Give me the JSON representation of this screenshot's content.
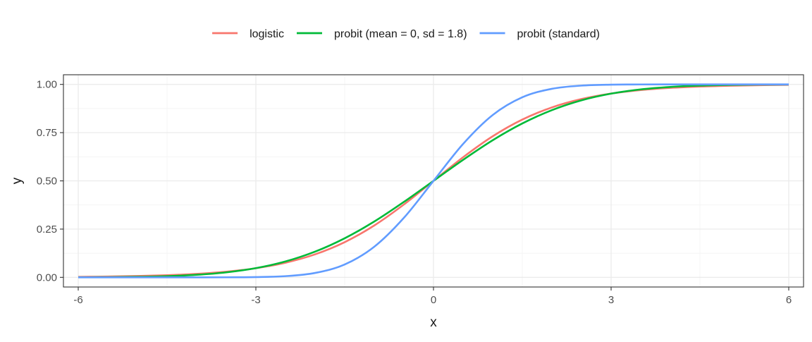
{
  "chart_data": {
    "type": "line",
    "title": "",
    "xlabel": "x",
    "ylabel": "y",
    "xlim": [
      -6.25,
      6.25
    ],
    "ylim": [
      -0.05,
      1.05
    ],
    "x_ticks": [
      -6,
      -3,
      0,
      3,
      6
    ],
    "x_tick_labels": [
      "-6",
      "-3",
      "0",
      "3",
      "6"
    ],
    "y_ticks": [
      0,
      0.25,
      0.5,
      0.75,
      1
    ],
    "y_tick_labels": [
      "0.00",
      "0.25",
      "0.50",
      "0.75",
      "1.00"
    ],
    "x_minor_ticks": [
      -4.5,
      -1.5,
      1.5,
      4.5
    ],
    "y_minor_ticks": [
      0.125,
      0.375,
      0.625,
      0.875
    ],
    "grid": true,
    "legend_position": "top",
    "x": [
      -6,
      -5.5,
      -5,
      -4.5,
      -4,
      -3.5,
      -3,
      -2.5,
      -2,
      -1.5,
      -1,
      -0.5,
      0,
      0.5,
      1,
      1.5,
      2,
      2.5,
      3,
      3.5,
      4,
      4.5,
      5,
      5.5,
      6
    ],
    "series": [
      {
        "name": "logistic",
        "color": "#F8766D",
        "values": [
          0.0025,
          0.0041,
          0.0067,
          0.011,
          0.018,
          0.0293,
          0.0474,
          0.0759,
          0.1192,
          0.1824,
          0.2689,
          0.3775,
          0.5,
          0.6225,
          0.7311,
          0.8176,
          0.8808,
          0.9241,
          0.9526,
          0.9707,
          0.982,
          0.989,
          0.9933,
          0.9959,
          0.9975
        ]
      },
      {
        "name": "probit (mean = 0, sd = 1.8)",
        "color": "#00BA38",
        "values": [
          0.0004,
          0.0011,
          0.0028,
          0.0062,
          0.0131,
          0.0259,
          0.0478,
          0.0824,
          0.1333,
          0.2025,
          0.2893,
          0.3909,
          0.5,
          0.6091,
          0.7107,
          0.7975,
          0.8667,
          0.9176,
          0.9522,
          0.9741,
          0.9869,
          0.9938,
          0.9972,
          0.9989,
          0.9996
        ]
      },
      {
        "name": "probit (standard)",
        "color": "#619CFF",
        "values": [
          0.0,
          0.0,
          0.0,
          0.0,
          0.0,
          0.0002,
          0.0013,
          0.0062,
          0.0228,
          0.0668,
          0.1587,
          0.3085,
          0.5,
          0.6915,
          0.8413,
          0.9332,
          0.9772,
          0.9938,
          0.9987,
          0.9998,
          1.0,
          1.0,
          1.0,
          1.0,
          1.0
        ]
      }
    ]
  }
}
